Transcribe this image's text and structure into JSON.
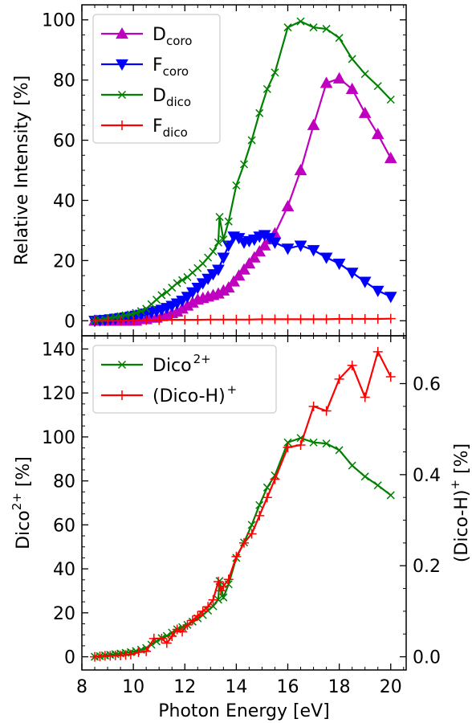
{
  "chart_data": [
    {
      "type": "line",
      "panel": "top",
      "xlabel": "Photon Energy [eV]",
      "ylabel": "Relative Intensity [%]",
      "xlim": [
        8,
        20.6
      ],
      "ylim": [
        -5,
        105
      ],
      "xticks": [
        8,
        10,
        12,
        14,
        16,
        18,
        20
      ],
      "yticks": [
        0,
        20,
        40,
        60,
        80,
        100
      ],
      "grid": false,
      "legend_position": "top-left",
      "series": [
        {
          "name": "D",
          "name_sub": "coro",
          "color": "#bf00bf",
          "marker": "triangle-up",
          "x": [
            8.5,
            8.7,
            8.9,
            9.1,
            9.3,
            9.5,
            9.7,
            9.9,
            10.1,
            10.3,
            10.5,
            10.7,
            10.9,
            11.1,
            11.3,
            11.5,
            11.7,
            11.9,
            12.1,
            12.3,
            12.5,
            12.7,
            12.9,
            13.1,
            13.3,
            13.5,
            13.7,
            13.9,
            14.1,
            14.3,
            14.5,
            14.7,
            14.9,
            15.1,
            15.3,
            15.5,
            16.0,
            16.5,
            17.0,
            17.5,
            18.0,
            18.5,
            19.0,
            19.5,
            20.0
          ],
          "y": [
            0,
            0,
            0,
            0,
            0,
            0,
            0,
            0,
            0,
            0.5,
            0.5,
            1,
            1,
            1.5,
            2,
            2.5,
            3,
            4,
            5,
            6,
            7,
            7.5,
            8,
            8.5,
            9,
            10,
            11,
            13,
            15,
            17,
            19,
            21,
            23,
            25,
            27,
            29,
            38,
            50,
            65,
            79,
            80.5,
            77,
            69,
            62,
            54
          ]
        },
        {
          "name": "F",
          "name_sub": "coro",
          "color": "#0000ff",
          "marker": "triangle-down",
          "x": [
            8.5,
            8.7,
            8.9,
            9.1,
            9.3,
            9.5,
            9.7,
            9.9,
            10.1,
            10.3,
            10.5,
            10.7,
            10.9,
            11.1,
            11.3,
            11.5,
            11.7,
            11.9,
            12.1,
            12.3,
            12.5,
            12.7,
            12.9,
            13.1,
            13.3,
            13.5,
            13.7,
            13.9,
            14.1,
            14.3,
            14.5,
            14.7,
            14.9,
            15.1,
            15.3,
            15.5,
            16.0,
            16.5,
            17.0,
            17.5,
            18.0,
            18.5,
            19.0,
            19.5,
            20.0
          ],
          "y": [
            0,
            0.2,
            0.3,
            0.5,
            0.7,
            0.9,
            1.1,
            1.4,
            1.7,
            2,
            2.4,
            2.8,
            3.2,
            3.7,
            4.3,
            5,
            5.8,
            6.7,
            8,
            9.5,
            11,
            12.5,
            14,
            15.5,
            17,
            21,
            25,
            28,
            27.5,
            26,
            26.5,
            27,
            28,
            28.5,
            27.5,
            26,
            24,
            25,
            23.5,
            21,
            19,
            16,
            13,
            10,
            8
          ]
        },
        {
          "name": "D",
          "name_sub": "dico",
          "color": "#008000",
          "marker": "x",
          "x": [
            8.5,
            8.7,
            8.9,
            9.1,
            9.3,
            9.5,
            9.7,
            9.9,
            10.1,
            10.3,
            10.5,
            10.7,
            10.9,
            11.1,
            11.3,
            11.5,
            11.7,
            11.9,
            12.1,
            12.3,
            12.5,
            12.7,
            12.9,
            13.1,
            13.3,
            13.35,
            13.5,
            13.7,
            14.0,
            14.3,
            14.6,
            14.9,
            15.2,
            15.5,
            16.0,
            16.5,
            17.0,
            17.5,
            18.0,
            18.5,
            19.0,
            19.5,
            20.0
          ],
          "y": [
            0,
            0.3,
            0.6,
            0.9,
            1.2,
            1.5,
            1.8,
            2.1,
            2.6,
            3.2,
            4,
            5.5,
            7,
            8.5,
            9.5,
            11,
            12.5,
            13.5,
            14.5,
            16,
            17.5,
            19,
            21,
            23,
            26,
            34.5,
            27,
            33,
            45,
            52,
            60,
            69,
            77,
            82.5,
            97.5,
            99.5,
            97.5,
            97,
            94,
            87,
            82,
            78,
            73.5
          ]
        },
        {
          "name": "F",
          "name_sub": "dico",
          "color": "#ff0000",
          "marker": "plus",
          "x": [
            8.5,
            9.0,
            9.5,
            10.0,
            10.5,
            11.0,
            11.5,
            12.0,
            12.5,
            13.0,
            13.5,
            14.0,
            14.5,
            15.0,
            15.5,
            16.0,
            16.5,
            17.0,
            17.5,
            18.0,
            18.5,
            19.0,
            19.5,
            20.0
          ],
          "y": [
            0,
            0,
            0,
            0.1,
            0.2,
            0.2,
            0.3,
            0.3,
            0.3,
            0.4,
            0.4,
            0.4,
            0.4,
            0.5,
            0.5,
            0.5,
            0.5,
            0.5,
            0.5,
            0.6,
            0.6,
            0.6,
            0.6,
            0.7
          ]
        }
      ]
    },
    {
      "type": "line",
      "panel": "bottom",
      "xlabel": "Photon Energy [eV]",
      "ylabel": "Dico",
      "ylabel_sup": "2+",
      "ylabel_suffix": " [%]",
      "ylabel_right": "(Dico-H)",
      "ylabel_right_sup": "+",
      "ylabel_right_suffix": " [%]",
      "xlim": [
        8,
        20.6
      ],
      "ylim_left": [
        -6,
        146
      ],
      "ylim_right": [
        -0.029,
        0.705
      ],
      "xticks": [
        8,
        10,
        12,
        14,
        16,
        18,
        20
      ],
      "yticks_left": [
        0,
        20,
        40,
        60,
        80,
        100,
        120,
        140
      ],
      "yticks_right": [
        "0.0",
        "0.2",
        "0.4",
        "0.6"
      ],
      "grid": false,
      "legend_position": "top-left",
      "series": [
        {
          "name": "Dico",
          "name_sup": "2+",
          "color": "#008000",
          "marker": "x",
          "axis": "left",
          "x": [
            8.5,
            8.7,
            8.9,
            9.1,
            9.3,
            9.5,
            9.7,
            9.9,
            10.1,
            10.3,
            10.5,
            10.7,
            10.9,
            11.1,
            11.3,
            11.5,
            11.7,
            11.9,
            12.1,
            12.3,
            12.5,
            12.7,
            12.9,
            13.1,
            13.3,
            13.35,
            13.5,
            13.7,
            14.0,
            14.3,
            14.6,
            14.9,
            15.2,
            15.5,
            16.0,
            16.5,
            17.0,
            17.5,
            18.0,
            18.5,
            19.0,
            19.5,
            20.0
          ],
          "y": [
            0,
            0.3,
            0.6,
            0.9,
            1.2,
            1.5,
            1.8,
            2.1,
            2.6,
            3.2,
            4,
            5.5,
            7,
            8.5,
            9.5,
            11,
            12.5,
            13.5,
            14.5,
            16,
            17.5,
            19,
            21,
            23,
            26,
            34.5,
            27,
            33,
            45,
            52,
            60,
            69,
            77,
            82.5,
            97.5,
            99.5,
            97.5,
            97,
            94,
            87,
            82,
            78,
            73.5
          ]
        },
        {
          "name": "(Dico-H)",
          "name_sup": "+",
          "color": "#ff0000",
          "marker": "plus",
          "axis": "right",
          "x": [
            8.5,
            8.7,
            8.9,
            9.1,
            9.3,
            9.5,
            9.7,
            9.9,
            10.2,
            10.5,
            10.8,
            11.1,
            11.3,
            11.5,
            11.7,
            11.9,
            12.1,
            12.3,
            12.5,
            12.7,
            12.9,
            13.1,
            13.3,
            13.4,
            13.5,
            13.7,
            14.0,
            14.3,
            14.6,
            14.9,
            15.2,
            15.5,
            16.0,
            16.5,
            17.0,
            17.5,
            18.0,
            18.5,
            19.0,
            19.5,
            20.0
          ],
          "y": [
            0,
            0.001,
            0.002,
            0.002,
            0.003,
            0.003,
            0.004,
            0.005,
            0.01,
            0.012,
            0.04,
            0.04,
            0.03,
            0.045,
            0.06,
            0.055,
            0.07,
            0.08,
            0.09,
            0.1,
            0.11,
            0.125,
            0.165,
            0.145,
            0.155,
            0.17,
            0.22,
            0.25,
            0.27,
            0.31,
            0.35,
            0.39,
            0.46,
            0.465,
            0.55,
            0.54,
            0.61,
            0.64,
            0.57,
            0.67,
            0.615
          ]
        }
      ]
    }
  ]
}
